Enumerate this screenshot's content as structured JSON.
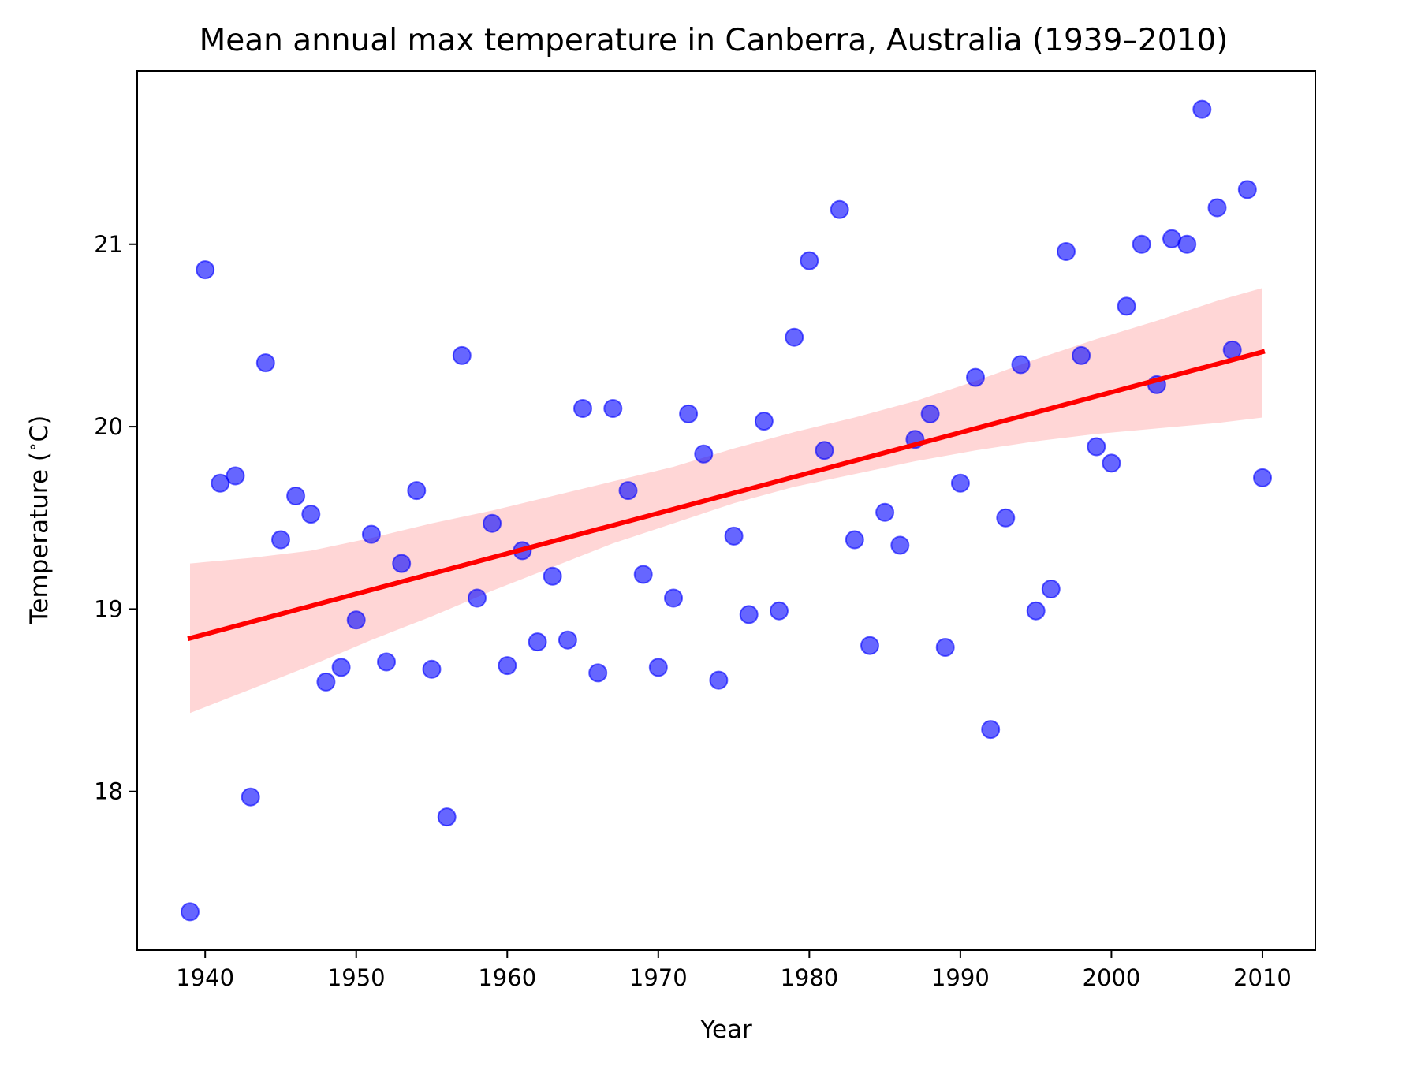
{
  "chart_data": {
    "type": "scatter",
    "title": "Mean annual max temperature in Canberra, Australia (1939–2010)",
    "xlabel": "Year",
    "ylabel": "Temperature ($^\\circ$C)",
    "ylabel_text": {
      "prefix": "Temperature (",
      "superscript": "∘",
      "suffix": "C)"
    },
    "xlim": [
      1935.5,
      2013.5
    ],
    "ylim": [
      17.13,
      21.95
    ],
    "xticks": [
      1940,
      1950,
      1960,
      1970,
      1980,
      1990,
      2000,
      2010
    ],
    "yticks": [
      18,
      19,
      20,
      21
    ],
    "grid": false,
    "colors": {
      "points": "#0000ff",
      "trend_line": "#ff0000",
      "confidence_band": "#ffd6d6"
    },
    "points": {
      "x": [
        1939,
        1940,
        1941,
        1942,
        1943,
        1944,
        1945,
        1946,
        1947,
        1948,
        1949,
        1950,
        1951,
        1952,
        1953,
        1954,
        1955,
        1956,
        1957,
        1958,
        1959,
        1960,
        1961,
        1962,
        1963,
        1964,
        1965,
        1966,
        1967,
        1968,
        1969,
        1970,
        1971,
        1972,
        1973,
        1974,
        1975,
        1976,
        1977,
        1978,
        1979,
        1980,
        1981,
        1982,
        1983,
        1984,
        1985,
        1986,
        1987,
        1988,
        1989,
        1990,
        1991,
        1992,
        1993,
        1994,
        1995,
        1996,
        1997,
        1998,
        1999,
        2000,
        2001,
        2002,
        2003,
        2004,
        2005,
        2006,
        2007,
        2008,
        2009,
        2010
      ],
      "y": [
        17.34,
        20.86,
        19.69,
        19.73,
        17.97,
        20.35,
        19.38,
        19.62,
        19.52,
        18.6,
        18.68,
        18.94,
        19.41,
        18.71,
        19.25,
        19.65,
        18.67,
        17.86,
        20.39,
        19.06,
        19.47,
        18.69,
        19.32,
        18.82,
        19.18,
        18.83,
        20.1,
        18.65,
        20.1,
        19.65,
        19.19,
        18.68,
        19.06,
        20.07,
        19.85,
        18.61,
        19.4,
        18.97,
        20.03,
        18.99,
        20.49,
        20.91,
        19.87,
        21.19,
        19.38,
        18.8,
        19.53,
        19.35,
        19.93,
        20.07,
        18.79,
        19.69,
        20.27,
        18.34,
        19.5,
        20.34,
        18.99,
        19.11,
        20.96,
        20.39,
        19.89,
        19.8,
        20.66,
        21.0,
        20.23,
        21.03,
        21.0,
        21.74,
        21.2,
        20.42,
        21.3,
        19.72
      ]
    },
    "trend_line": {
      "x": [
        1939,
        2010
      ],
      "y": [
        18.84,
        20.41
      ]
    },
    "confidence_band": {
      "x": [
        1939,
        1943,
        1947,
        1951,
        1955,
        1959,
        1963,
        1967,
        1971,
        1975,
        1979,
        1983,
        1987,
        1991,
        1995,
        1999,
        2003,
        2007,
        2010
      ],
      "lower": [
        18.43,
        18.56,
        18.69,
        18.83,
        18.96,
        19.1,
        19.23,
        19.36,
        19.47,
        19.58,
        19.67,
        19.74,
        19.81,
        19.87,
        19.92,
        19.96,
        19.99,
        20.02,
        20.05
      ],
      "upper": [
        19.25,
        19.28,
        19.32,
        19.39,
        19.47,
        19.54,
        19.62,
        19.7,
        19.78,
        19.88,
        19.97,
        20.05,
        20.14,
        20.25,
        20.37,
        20.48,
        20.58,
        20.69,
        20.76
      ]
    }
  }
}
